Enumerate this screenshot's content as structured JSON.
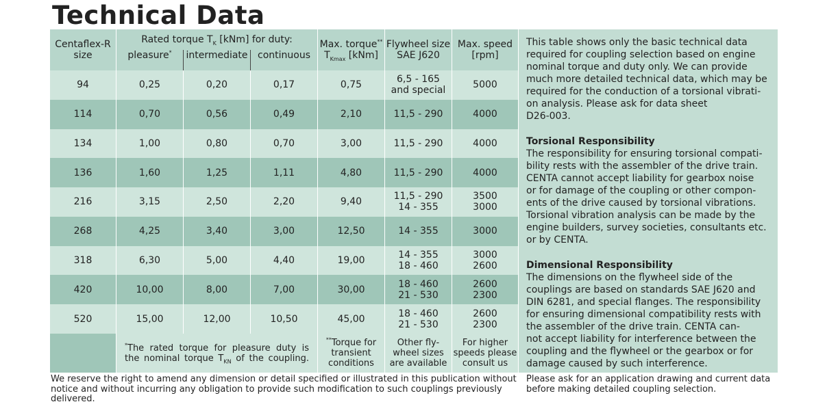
{
  "header": {
    "title": "Technical Data"
  },
  "table": {
    "head": {
      "size": [
        "Centaflex-R",
        "size"
      ],
      "rated": [
        {
          "text": "Rated torque T"
        },
        {
          "sub": "K"
        },
        {
          "text": " [kNm] for duty:"
        }
      ],
      "duties": [
        [
          {
            "text": "pleasure"
          },
          {
            "sup": "*"
          }
        ],
        [
          {
            "text": "intermediate"
          }
        ],
        [
          {
            "text": "continuous"
          }
        ]
      ],
      "max": [
        [
          {
            "text": "Max. torque"
          },
          {
            "sup": "**"
          }
        ],
        [
          {
            "text": "T"
          },
          {
            "sub": "Kmax"
          },
          {
            "text": " [kNm]"
          }
        ]
      ],
      "flywheel": [
        "Flywheel size",
        "SAE J620"
      ],
      "speed": [
        "Max. speed",
        "[rpm]"
      ]
    },
    "rows": [
      [
        "94",
        "0,25",
        "0,20",
        "0,17",
        "0,75",
        [
          "6,5 - 165",
          "and special"
        ],
        [
          "5000"
        ]
      ],
      [
        "114",
        "0,70",
        "0,56",
        "0,49",
        "2,10",
        [
          "11,5 - 290"
        ],
        [
          "4000"
        ]
      ],
      [
        "134",
        "1,00",
        "0,80",
        "0,70",
        "3,00",
        [
          "11,5 - 290"
        ],
        [
          "4000"
        ]
      ],
      [
        "136",
        "1,60",
        "1,25",
        "1,11",
        "4,80",
        [
          "11,5 - 290"
        ],
        [
          "4000"
        ]
      ],
      [
        "216",
        "3,15",
        "2,50",
        "2,20",
        "9,40",
        [
          "11,5 - 290",
          "14 - 355"
        ],
        [
          "3500",
          "3000"
        ]
      ],
      [
        "268",
        "4,25",
        "3,40",
        "3,00",
        "12,50",
        [
          "14 - 355"
        ],
        [
          "3000"
        ]
      ],
      [
        "318",
        "6,30",
        "5,00",
        "4,40",
        "19,00",
        [
          "14 - 355",
          "18 - 460"
        ],
        [
          "3000",
          "2600"
        ]
      ],
      [
        "420",
        "10,00",
        "8,00",
        "7,00",
        "30,00",
        [
          "18 - 460",
          "21 - 530"
        ],
        [
          "2600",
          "2300"
        ]
      ],
      [
        "520",
        "15,00",
        "12,00",
        "10,50",
        "45,00",
        [
          "18 - 460",
          "21 - 530"
        ],
        [
          "2600",
          "2300"
        ]
      ]
    ],
    "footer": {
      "duty_note": [
        {
          "sup": "*"
        },
        {
          "text": "The rated torque for pleasure duty is the nominal torque T"
        },
        {
          "sub": "KN"
        },
        {
          "text": " of the coupling."
        }
      ],
      "max_note": [
        {
          "sup": "**"
        },
        {
          "text": "Torque for transient conditions"
        }
      ],
      "flywheel_note": [
        "Other fly-",
        "wheel sizes",
        "are available"
      ],
      "speed_note": [
        "For higher",
        "speeds please",
        "consult us"
      ]
    }
  },
  "side": {
    "paragraphs": [
      {
        "lines": [
          "This table shows only the basic technical data",
          "required for coupling selection based on engine",
          "nominal torque and duty only. We can provide",
          "much more detailed technical data, which may be",
          "required for the conduction of a torsional vibrati-",
          "on analysis. Please ask for data sheet",
          "D26-003."
        ]
      },
      {
        "heading": "Torsional Responsibility",
        "lines": [
          "The responsibility for ensuring torsional compati-",
          "bility rests with the assembler of the drive train.",
          "CENTA cannot accept liability for gearbox noise",
          "or for damage of the coupling or other compon-",
          "ents of the drive caused by torsional vibrations.",
          "Torsional vibration analysis can be made by the",
          "engine builders, survey societies, consultants etc.",
          "or by CENTA."
        ]
      },
      {
        "heading": "Dimensional Responsibility",
        "lines": [
          "The dimensions on the flywheel side of the",
          "couplings are based on standards SAE J620 and",
          "DIN 6281, and special flanges. The responsibility",
          "for ensuring dimensional compatibility rests with",
          "the assembler of the drive train. CENTA can-",
          "not accept liability for interference between the",
          "coupling and the flywheel or the gearbox or for",
          "damage caused by such interference."
        ]
      }
    ]
  },
  "notes": {
    "left": [
      "We reserve the right to amend any dimension or detail specified or illustrated in this publication without",
      "notice and without incurring any obligation to provide such modification to such couplings previously",
      "delivered."
    ],
    "right": [
      "Please ask for an application drawing and current data",
      "before making detailed coupling selection."
    ]
  }
}
